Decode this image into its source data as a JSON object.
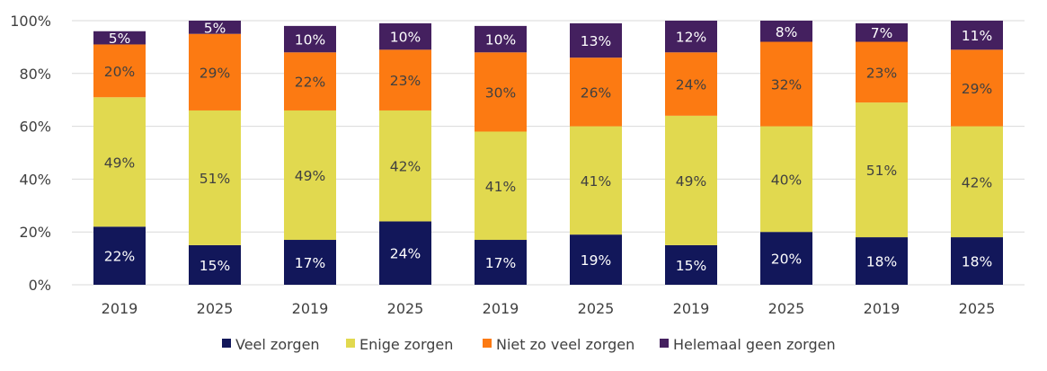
{
  "chart_data": {
    "type": "bar",
    "stacked": true,
    "categories": [
      "2019",
      "2025",
      "2019",
      "2025",
      "2019",
      "2025",
      "2019",
      "2025",
      "2019",
      "2025"
    ],
    "ylim": [
      0,
      100
    ],
    "yticks": [
      "0%",
      "20%",
      "40%",
      "60%",
      "80%",
      "100%"
    ],
    "grid": true,
    "legend_position": "bottom",
    "series": [
      {
        "name": "Veel zorgen",
        "color": "#12175a",
        "values": [
          22,
          15,
          17,
          24,
          17,
          19,
          15,
          20,
          18,
          18
        ],
        "labels": [
          "22%",
          "15%",
          "17%",
          "24%",
          "17%",
          "19%",
          "15%",
          "20%",
          "18%",
          "18%"
        ]
      },
      {
        "name": "Enige zorgen",
        "color": "#e1d94f",
        "values": [
          49,
          51,
          49,
          42,
          41,
          41,
          49,
          40,
          51,
          42
        ],
        "labels": [
          "49%",
          "51%",
          "49%",
          "42%",
          "41%",
          "41%",
          "49%",
          "40%",
          "51%",
          "42%"
        ]
      },
      {
        "name": "Niet zo veel zorgen",
        "color": "#fc7a12",
        "values": [
          20,
          29,
          22,
          23,
          30,
          26,
          24,
          32,
          23,
          29
        ],
        "labels": [
          "20%",
          "29%",
          "22%",
          "23%",
          "30%",
          "26%",
          "24%",
          "32%",
          "23%",
          "29%"
        ]
      },
      {
        "name": "Helemaal geen zorgen",
        "color": "#44205f",
        "values": [
          5,
          5,
          10,
          10,
          10,
          13,
          12,
          8,
          7,
          11
        ],
        "labels": [
          "5%",
          "5%",
          "10%",
          "10%",
          "10%",
          "13%",
          "12%",
          "8%",
          "7%",
          "11%"
        ]
      }
    ]
  }
}
